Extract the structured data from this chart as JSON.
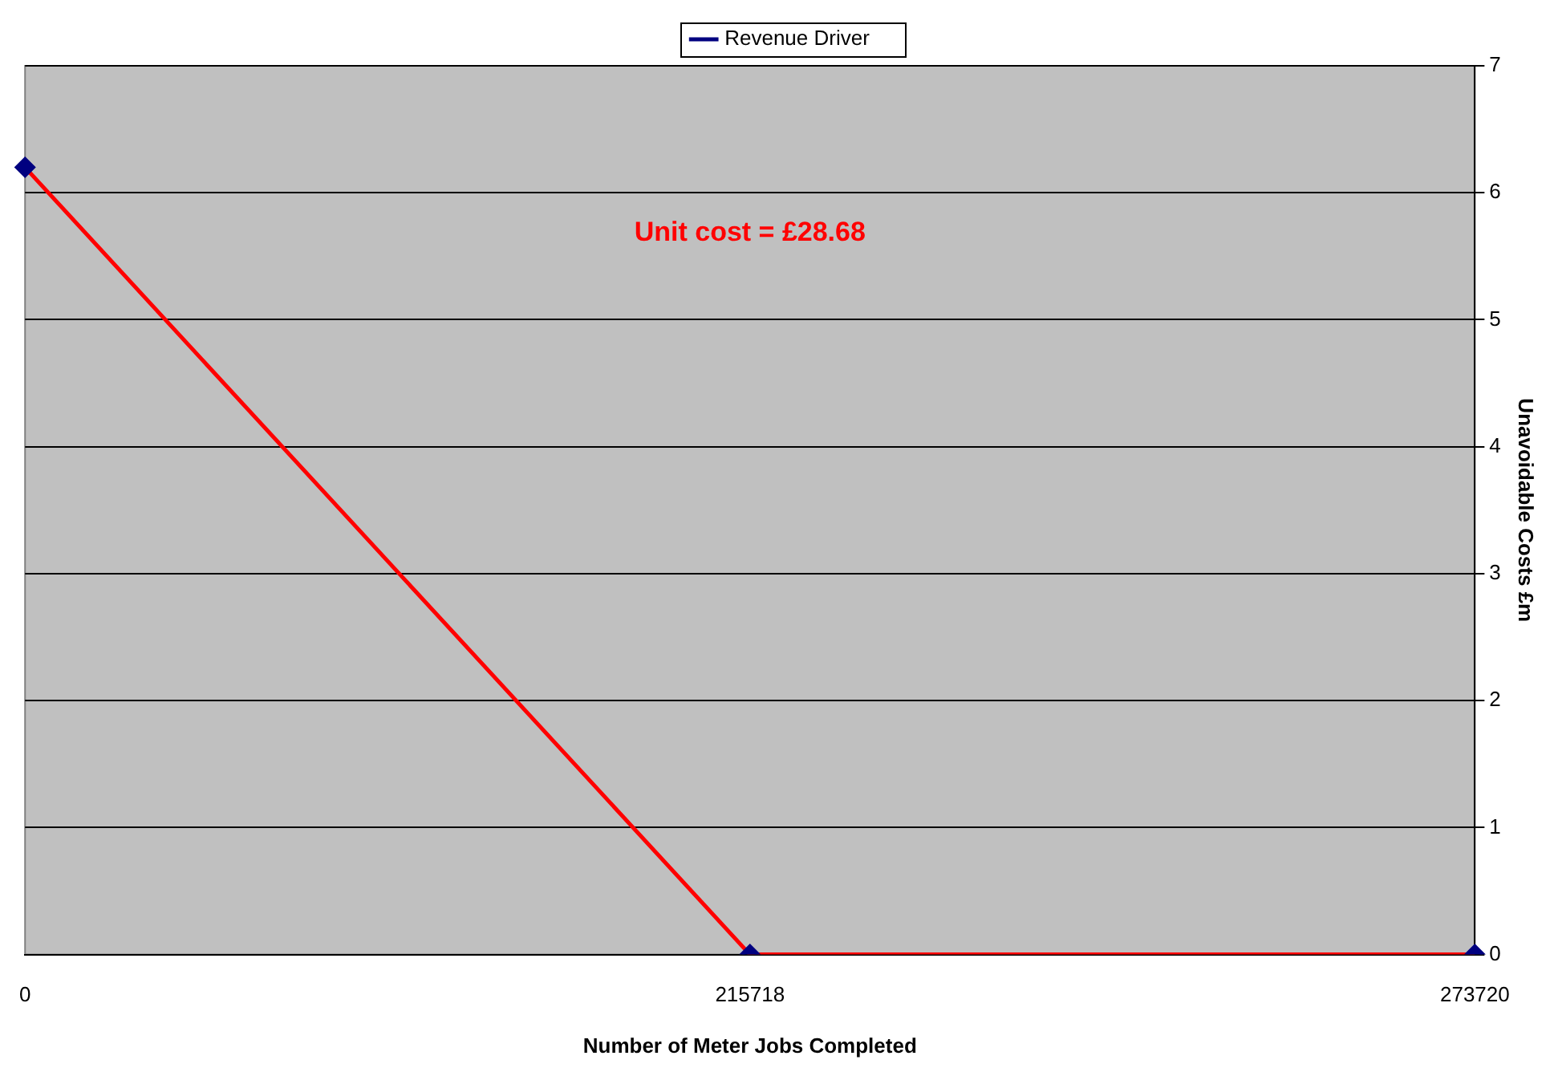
{
  "chart_data": {
    "type": "line",
    "xlabel": "Number of Meter Jobs Completed",
    "ylabel": "Unavoidable Costs £m",
    "categories": [
      "0",
      "215718",
      "273720"
    ],
    "series": [
      {
        "name": "Revenue Driver",
        "color": "#ff0000",
        "values": [
          6.2,
          0,
          0
        ]
      }
    ],
    "ylim": [
      0,
      7
    ],
    "yticks": [
      0,
      1,
      2,
      3,
      4,
      5,
      6,
      7
    ],
    "grid": "y",
    "legend": "top",
    "marker": "diamond",
    "line_style": "solid",
    "annotations": [
      "Unit cost = £28.68"
    ]
  }
}
